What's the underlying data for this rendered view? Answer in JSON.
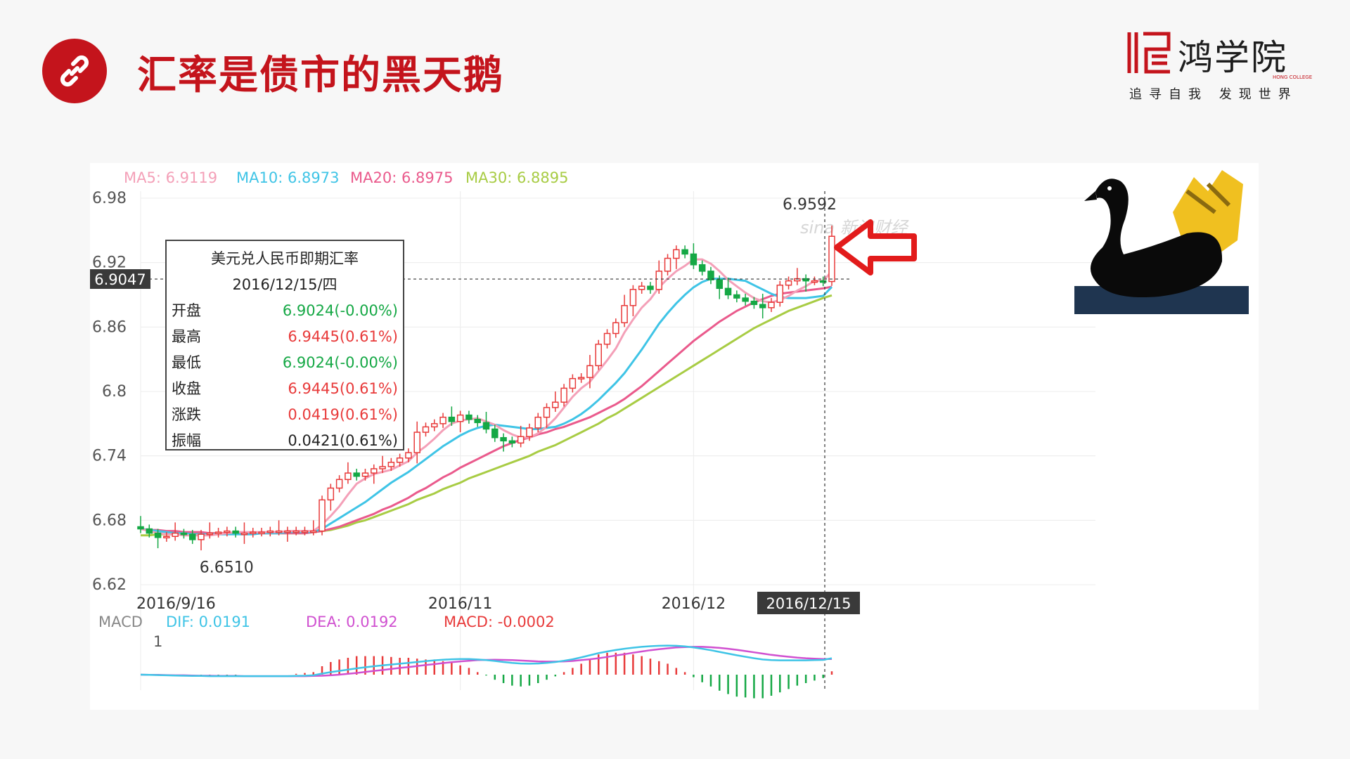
{
  "slide": {
    "title": "汇率是债市的黑天鹅",
    "icon": "link-icon",
    "accent_color": "#c4141c"
  },
  "logo": {
    "name": "鸿学院",
    "english": "HONG COLLEGE",
    "slogan": "追寻自我 发现世界"
  },
  "chart_data": {
    "type": "candlestick",
    "watermark": "sina 新浪财经",
    "ylim": [
      6.62,
      6.98
    ],
    "y_ticks": [
      6.98,
      6.92,
      6.86,
      6.8,
      6.74,
      6.68,
      6.62
    ],
    "x_tick_labels": [
      "2016/9/16",
      "2016/11",
      "2016/12"
    ],
    "x_tick_index": [
      0,
      37,
      64
    ],
    "cursor_date": "2016/12/15",
    "cursor_price": "6.9047",
    "annotation_high": "6.9592",
    "annotation_low": "6.6510",
    "ma_legend": [
      {
        "name": "MA5",
        "value": "6.9119",
        "color": "#f4a0b8"
      },
      {
        "name": "MA10",
        "value": "6.8973",
        "color": "#3fc4e6"
      },
      {
        "name": "MA20",
        "value": "6.8975",
        "color": "#ea5a8c"
      },
      {
        "name": "MA30",
        "value": "6.8895",
        "color": "#a8cc44"
      }
    ],
    "up_color": "#e83a3a",
    "down_color": "#15a845",
    "tooltip": {
      "title": "美元兑人民币即期汇率",
      "date": "2016/12/15/四",
      "rows": [
        {
          "label": "开盘",
          "value": "6.9024(-0.00%)",
          "color": "#15a845"
        },
        {
          "label": "最高",
          "value": "6.9445(0.61%)",
          "color": "#e83a3a"
        },
        {
          "label": "最低",
          "value": "6.9024(-0.00%)",
          "color": "#15a845"
        },
        {
          "label": "收盘",
          "value": "6.9445(0.61%)",
          "color": "#e83a3a"
        },
        {
          "label": "涨跌",
          "value": "0.0419(0.61%)",
          "color": "#e83a3a"
        },
        {
          "label": "振幅",
          "value": "0.0421(0.61%)",
          "color": "#222222"
        }
      ]
    },
    "closes": [
      6.672,
      6.668,
      6.664,
      6.665,
      6.668,
      6.667,
      6.662,
      6.667,
      6.668,
      6.669,
      6.67,
      6.668,
      6.668,
      6.669,
      6.669,
      6.67,
      6.67,
      6.67,
      6.67,
      6.67,
      6.67,
      6.699,
      6.71,
      6.718,
      6.724,
      6.721,
      6.724,
      6.728,
      6.73,
      6.734,
      6.738,
      6.743,
      6.762,
      6.767,
      6.77,
      6.776,
      6.772,
      6.778,
      6.774,
      6.771,
      6.765,
      6.757,
      6.754,
      6.752,
      6.758,
      6.766,
      6.776,
      6.785,
      6.79,
      6.803,
      6.812,
      6.813,
      6.824,
      6.844,
      6.854,
      6.864,
      6.88,
      6.895,
      6.898,
      6.895,
      6.912,
      6.924,
      6.932,
      6.928,
      6.918,
      6.912,
      6.904,
      6.896,
      6.89,
      6.887,
      6.884,
      6.881,
      6.878,
      6.883,
      6.899,
      6.903,
      6.905,
      6.903,
      6.903,
      6.902,
      6.9445
    ],
    "ma5": [
      6.672,
      6.67,
      6.668,
      6.667,
      6.667,
      6.666,
      6.666,
      6.666,
      6.666,
      6.667,
      6.668,
      6.669,
      6.669,
      6.669,
      6.669,
      6.669,
      6.669,
      6.67,
      6.67,
      6.67,
      6.67,
      6.676,
      6.684,
      6.693,
      6.704,
      6.714,
      6.719,
      6.723,
      6.725,
      6.727,
      6.731,
      6.735,
      6.743,
      6.749,
      6.756,
      6.764,
      6.77,
      6.773,
      6.774,
      6.775,
      6.772,
      6.769,
      6.764,
      6.76,
      6.757,
      6.757,
      6.761,
      6.767,
      6.775,
      6.785,
      6.795,
      6.803,
      6.809,
      6.819,
      6.829,
      6.84,
      6.855,
      6.867,
      6.878,
      6.886,
      6.897,
      6.905,
      6.912,
      6.917,
      6.923,
      6.923,
      6.919,
      6.912,
      6.904,
      6.898,
      6.892,
      6.887,
      6.884,
      6.883,
      6.885,
      6.889,
      6.894,
      6.898,
      6.903,
      6.903,
      6.9119
    ],
    "ma10": [
      6.672,
      6.671,
      6.67,
      6.669,
      6.668,
      6.668,
      6.667,
      6.667,
      6.667,
      6.667,
      6.667,
      6.667,
      6.667,
      6.667,
      6.668,
      6.668,
      6.668,
      6.669,
      6.669,
      6.669,
      6.669,
      6.672,
      6.677,
      6.682,
      6.687,
      6.692,
      6.697,
      6.703,
      6.709,
      6.715,
      6.72,
      6.725,
      6.731,
      6.737,
      6.743,
      6.749,
      6.754,
      6.759,
      6.763,
      6.766,
      6.768,
      6.769,
      6.768,
      6.767,
      6.766,
      6.765,
      6.765,
      6.766,
      6.767,
      6.77,
      6.774,
      6.779,
      6.785,
      6.792,
      6.8,
      6.808,
      6.817,
      6.828,
      6.839,
      6.851,
      6.863,
      6.873,
      6.882,
      6.89,
      6.897,
      6.902,
      6.905,
      6.905,
      6.905,
      6.904,
      6.903,
      6.899,
      6.895,
      6.891,
      6.888,
      6.887,
      6.887,
      6.887,
      6.888,
      6.889,
      6.8973
    ],
    "ma20": [
      6.672,
      6.671,
      6.671,
      6.67,
      6.67,
      6.669,
      6.669,
      6.669,
      6.668,
      6.668,
      6.668,
      6.668,
      6.668,
      6.668,
      6.668,
      6.668,
      6.668,
      6.668,
      6.668,
      6.668,
      6.669,
      6.67,
      6.672,
      6.674,
      6.677,
      6.68,
      6.683,
      6.686,
      6.69,
      6.693,
      6.697,
      6.701,
      6.706,
      6.71,
      6.715,
      6.72,
      6.724,
      6.729,
      6.733,
      6.737,
      6.741,
      6.745,
      6.749,
      6.752,
      6.755,
      6.757,
      6.76,
      6.762,
      6.765,
      6.767,
      6.77,
      6.773,
      6.776,
      6.78,
      6.784,
      6.788,
      6.793,
      6.799,
      6.805,
      6.812,
      6.819,
      6.826,
      6.833,
      6.84,
      6.847,
      6.853,
      6.859,
      6.865,
      6.87,
      6.875,
      6.879,
      6.883,
      6.886,
      6.889,
      6.891,
      6.892,
      6.893,
      6.894,
      6.895,
      6.896,
      6.8975
    ],
    "ma30": [
      6.666,
      6.666,
      6.667,
      6.667,
      6.667,
      6.668,
      6.668,
      6.668,
      6.668,
      6.668,
      6.668,
      6.668,
      6.668,
      6.668,
      6.668,
      6.668,
      6.668,
      6.668,
      6.668,
      6.668,
      6.669,
      6.67,
      6.671,
      6.673,
      6.675,
      6.678,
      6.68,
      6.683,
      6.686,
      6.689,
      6.692,
      6.695,
      6.699,
      6.702,
      6.705,
      6.709,
      6.712,
      6.715,
      6.719,
      6.722,
      6.725,
      6.728,
      6.731,
      6.734,
      6.737,
      6.74,
      6.744,
      6.747,
      6.75,
      6.754,
      6.758,
      6.762,
      6.766,
      6.77,
      6.775,
      6.779,
      6.784,
      6.789,
      6.794,
      6.799,
      6.804,
      6.809,
      6.814,
      6.819,
      6.824,
      6.829,
      6.834,
      6.839,
      6.844,
      6.849,
      6.854,
      6.859,
      6.863,
      6.867,
      6.871,
      6.875,
      6.878,
      6.881,
      6.884,
      6.887,
      6.8895
    ],
    "macd_legend": {
      "label": "MACD",
      "dif": "DIF: 0.0191",
      "dea": "DEA: 0.0192",
      "macd": "MACD: -0.0002",
      "dif_color": "#3fc4e6",
      "dea_color": "#d050d0",
      "macd_color": "#e83a3a"
    },
    "macd_axis_label": "1",
    "macd_dif": [
      0.0,
      -0.1,
      -0.2,
      -0.3,
      -0.4,
      -0.5,
      -0.6,
      -0.6,
      -0.7,
      -0.7,
      -0.7,
      -0.7,
      -0.7,
      -0.7,
      -0.7,
      -0.7,
      -0.7,
      -0.7,
      -0.6,
      -0.5,
      -0.3,
      0.5,
      1.2,
      1.8,
      2.4,
      3.0,
      3.5,
      4.0,
      4.4,
      4.8,
      5.2,
      5.6,
      6.0,
      6.4,
      6.8,
      7.1,
      7.3,
      7.4,
      7.4,
      7.2,
      6.9,
      6.5,
      6.0,
      5.6,
      5.3,
      5.2,
      5.3,
      5.6,
      6.0,
      6.6,
      7.3,
      8.2,
      9.2,
      10.2,
      11.0,
      11.7,
      12.3,
      12.8,
      13.2,
      13.5,
      13.7,
      13.8,
      13.7,
      13.4,
      12.9,
      12.3,
      11.6,
      10.8,
      10.0,
      9.2,
      8.5,
      7.8,
      7.2,
      6.9,
      6.8,
      6.8,
      6.8,
      6.8,
      6.9,
      7.0,
      7.8
    ],
    "macd_dea": [
      0.0,
      -0.1,
      -0.1,
      -0.2,
      -0.3,
      -0.3,
      -0.4,
      -0.5,
      -0.5,
      -0.6,
      -0.6,
      -0.6,
      -0.7,
      -0.7,
      -0.7,
      -0.7,
      -0.7,
      -0.7,
      -0.7,
      -0.7,
      -0.6,
      -0.5,
      -0.3,
      0.0,
      0.4,
      0.8,
      1.3,
      1.8,
      2.2,
      2.7,
      3.2,
      3.6,
      4.1,
      4.6,
      5.0,
      5.5,
      5.9,
      6.3,
      6.6,
      6.9,
      7.0,
      7.1,
      7.0,
      6.9,
      6.7,
      6.5,
      6.3,
      6.2,
      6.2,
      6.3,
      6.5,
      6.9,
      7.3,
      7.8,
      8.4,
      9.1,
      9.7,
      10.4,
      11.0,
      11.6,
      12.1,
      12.5,
      12.9,
      13.1,
      13.2,
      13.2,
      13.0,
      12.7,
      12.3,
      11.8,
      11.2,
      10.6,
      10.0,
      9.4,
      8.9,
      8.5,
      8.1,
      7.8,
      7.6,
      7.4,
      7.4
    ]
  }
}
